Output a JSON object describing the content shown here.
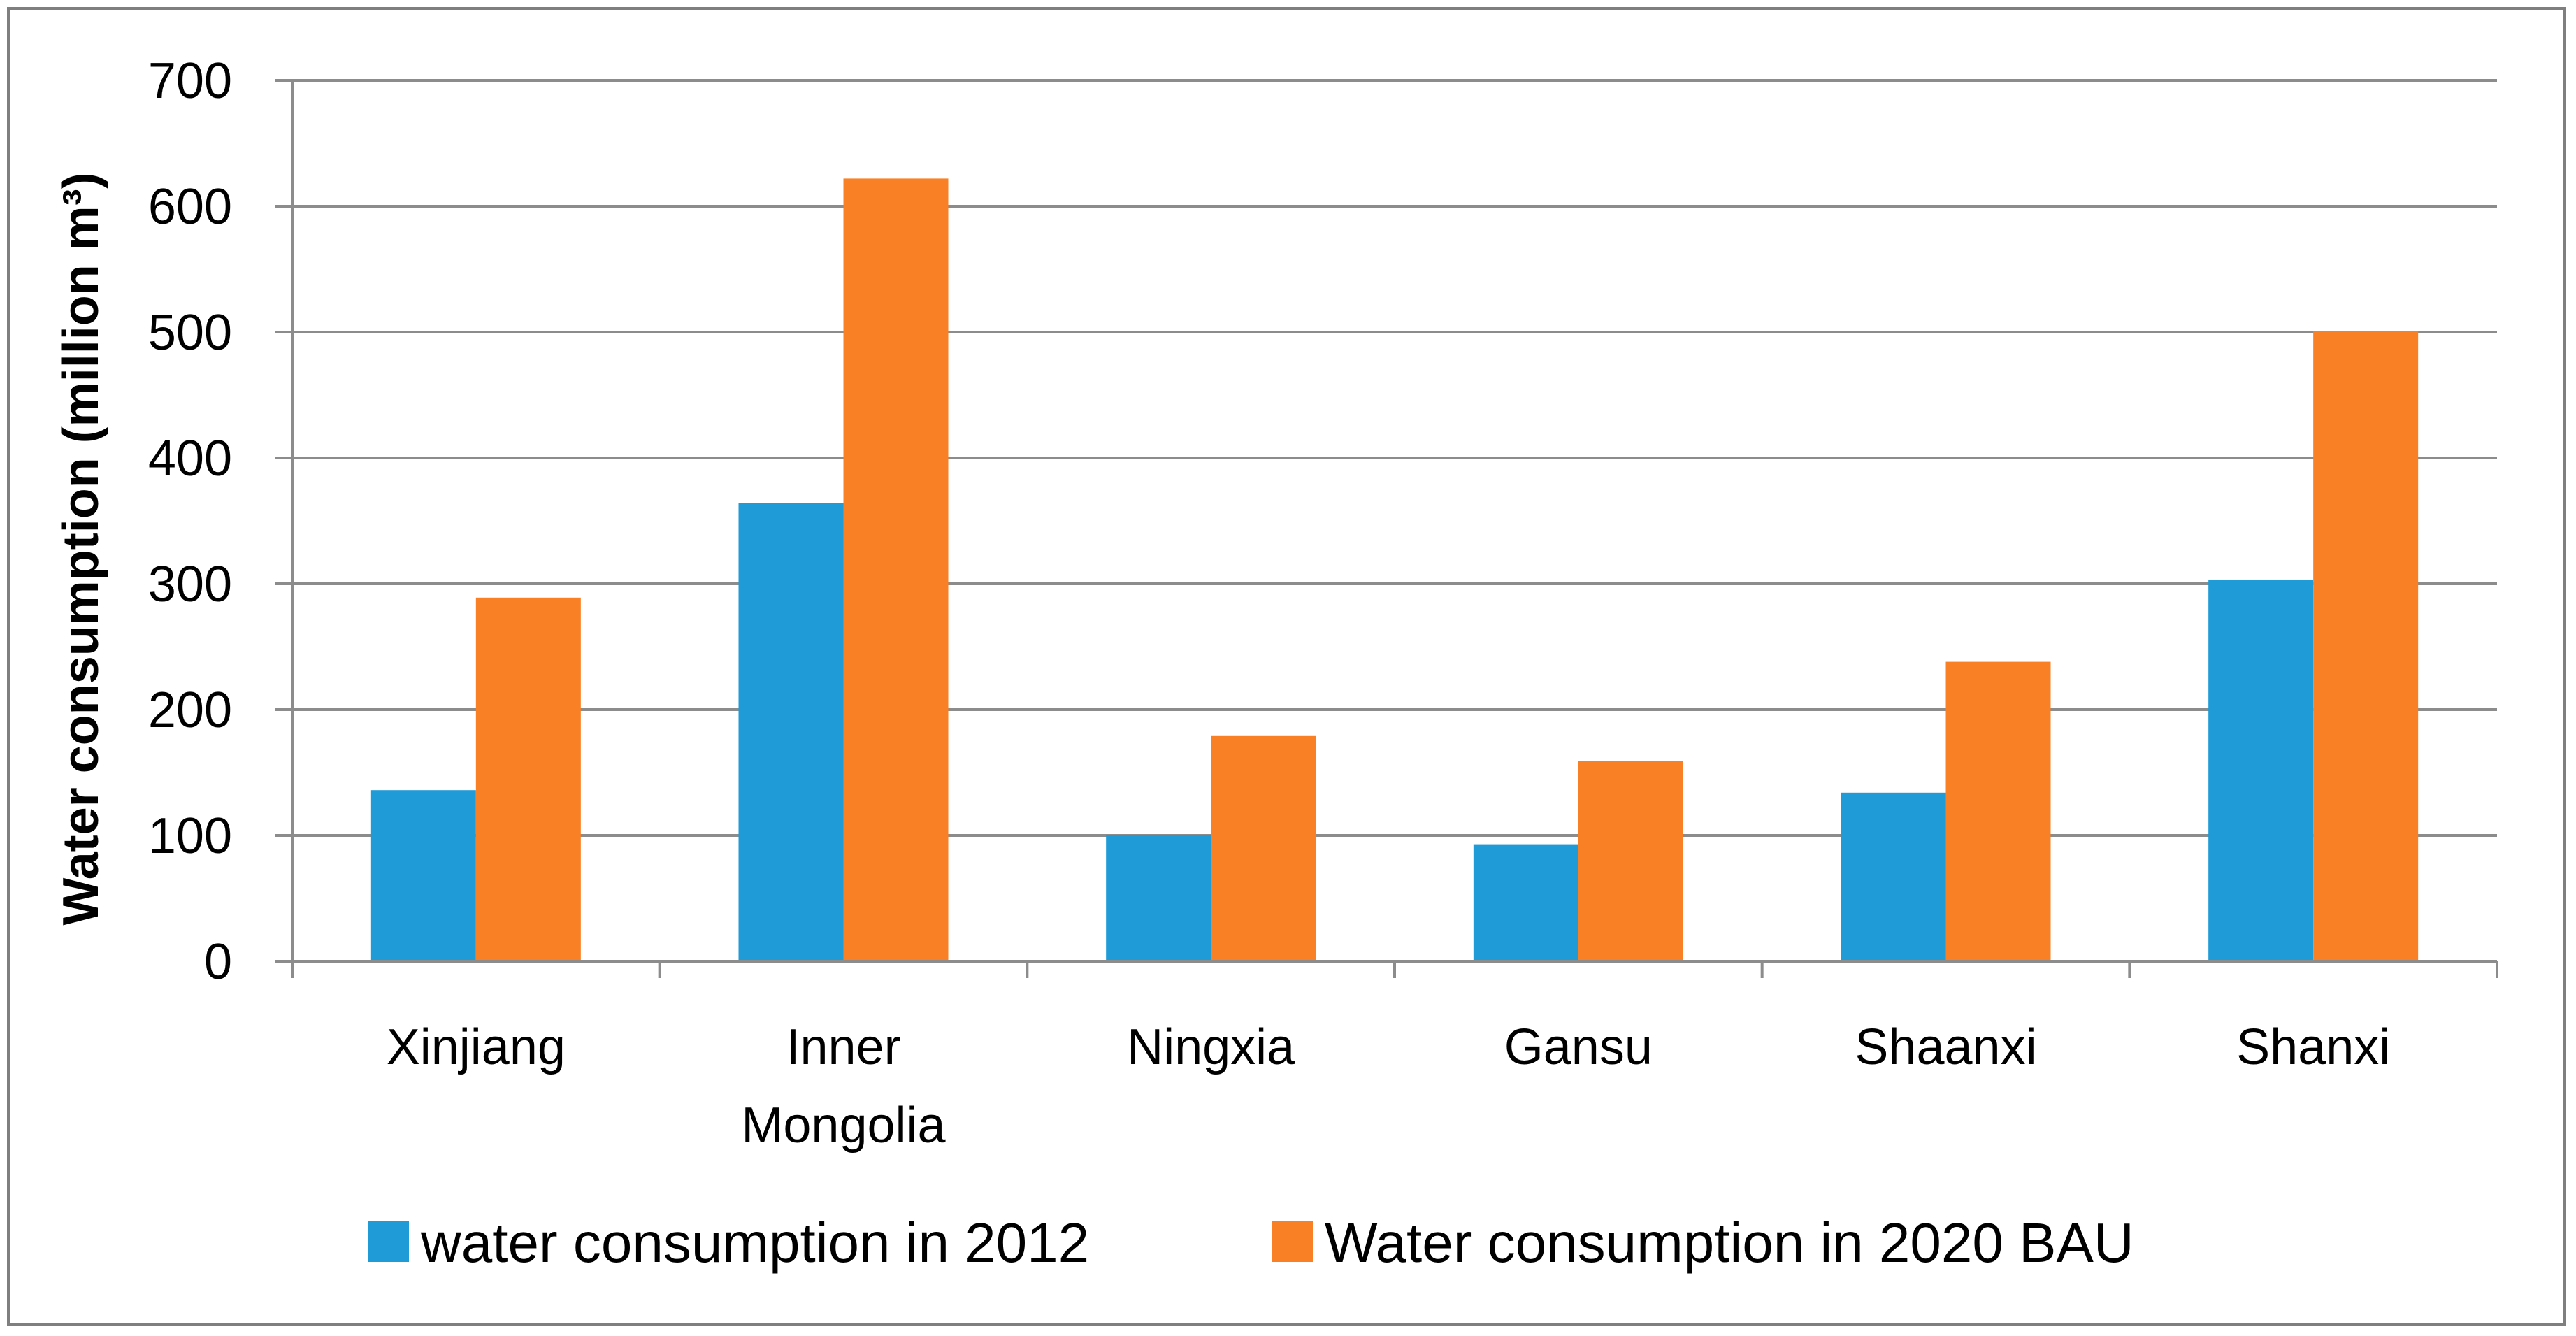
{
  "chart_data": {
    "type": "bar",
    "title": "",
    "xlabel": "",
    "ylabel": "Water consumption (million m³)",
    "categories": [
      [
        "Xinjiang"
      ],
      [
        "Inner",
        "Mongolia"
      ],
      [
        "Ningxia"
      ],
      [
        "Gansu"
      ],
      [
        "Shaanxi"
      ],
      [
        "Shanxi"
      ]
    ],
    "series": [
      {
        "name": "water consumption in 2012",
        "color": "#1f9bd7",
        "values": [
          136,
          364,
          100,
          93,
          134,
          303
        ]
      },
      {
        "name": "Water consumption in 2020 BAU",
        "color": "#f98025",
        "values": [
          289,
          622,
          179,
          159,
          238,
          501
        ]
      }
    ],
    "ylim": [
      0,
      700
    ],
    "yticks": [
      0,
      100,
      200,
      300,
      400,
      500,
      600,
      700
    ],
    "grid": true,
    "legend": "bottom"
  }
}
